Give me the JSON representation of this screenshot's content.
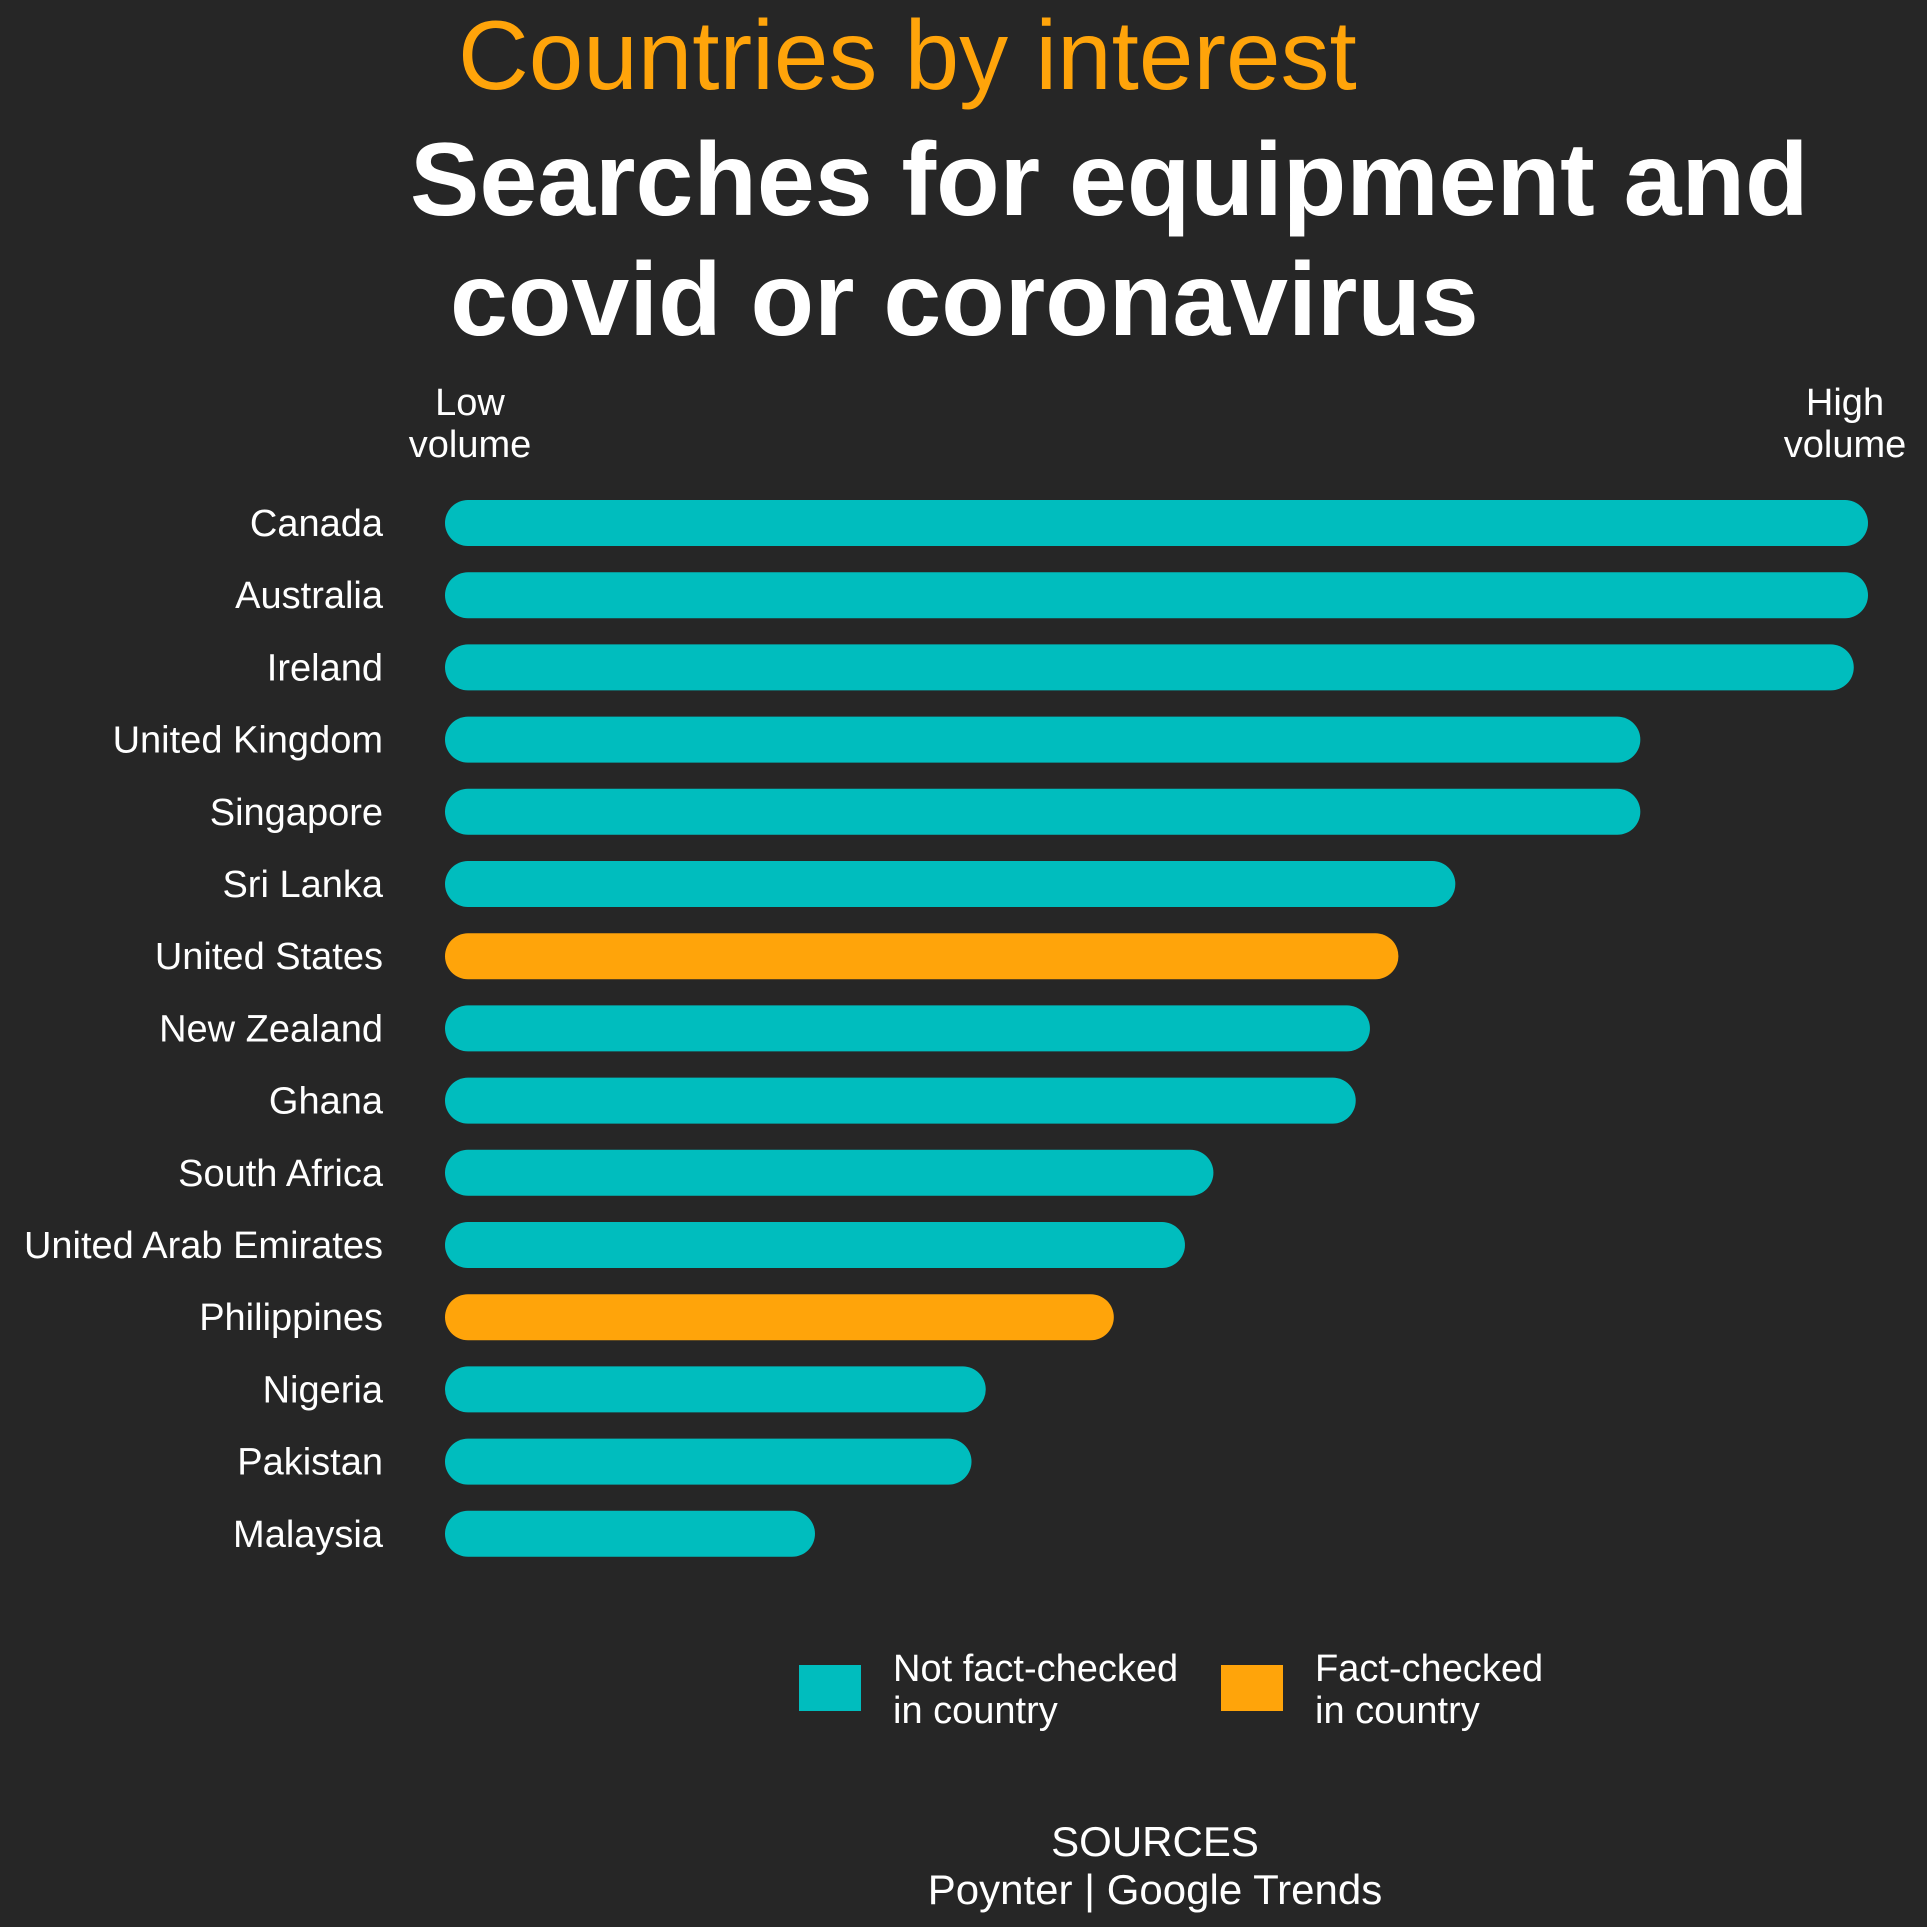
{
  "kicker": "Countries by interest",
  "title_line1": "Searches for equipment and",
  "title_line2": "covid or coronavirus",
  "axis": {
    "low_line1": "Low",
    "low_line2": "volume",
    "high_line1": "High",
    "high_line2": "volume"
  },
  "legend": {
    "not_line1": "Not fact-checked",
    "not_line2": "in country",
    "fact_line1": "Fact-checked",
    "fact_line2": "in country"
  },
  "sources": {
    "heading": "SOURCES",
    "text": "Poynter | Google Trends"
  },
  "colors": {
    "not_fact_checked": "#00BDBE",
    "fact_checked": "#FFA40A",
    "accent": "#FFA40A",
    "background": "#262626"
  },
  "chart_data": {
    "type": "bar",
    "orientation": "horizontal",
    "title": "Searches for equipment and covid or coronavirus",
    "categories": [
      "Canada",
      "Australia",
      "Ireland",
      "United Kingdom",
      "Singapore",
      "Sri Lanka",
      "United States",
      "New Zealand",
      "Ghana",
      "South Africa",
      "United Arab Emirates",
      "Philippines",
      "Nigeria",
      "Pakistan",
      "Malaysia"
    ],
    "values": [
      100,
      100,
      99,
      84,
      84,
      71,
      67,
      65,
      64,
      54,
      52,
      47,
      38,
      37,
      26
    ],
    "fact_checked": [
      false,
      false,
      false,
      false,
      false,
      false,
      true,
      false,
      false,
      false,
      false,
      true,
      false,
      false,
      false
    ],
    "xlim": [
      0,
      100
    ],
    "grid": false,
    "legend_position": "bottom"
  }
}
